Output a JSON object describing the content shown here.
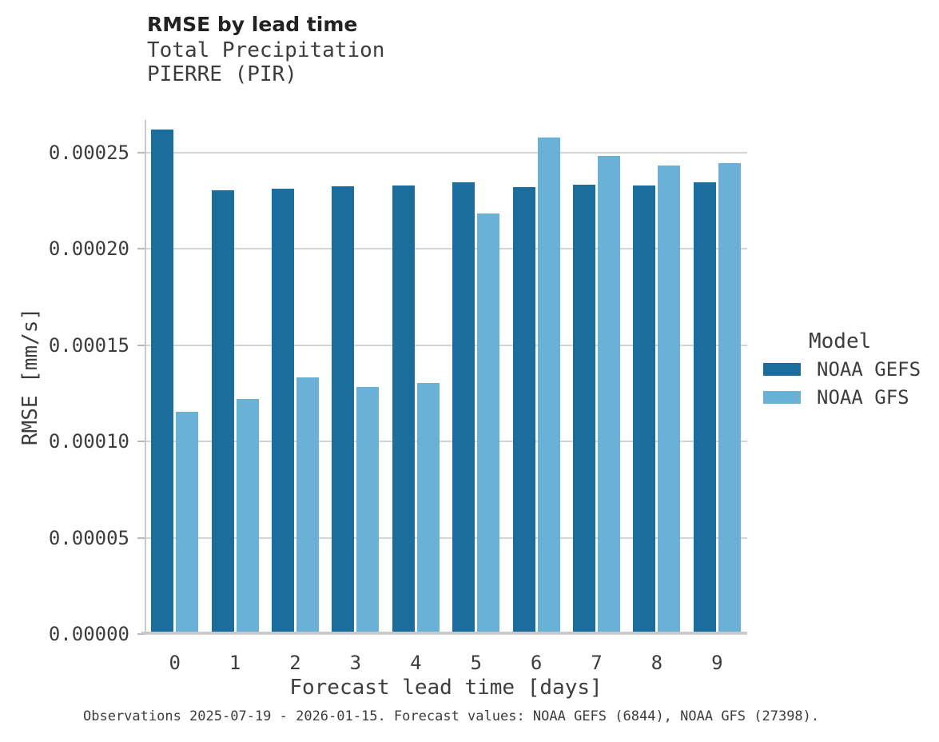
{
  "chart_data": {
    "type": "bar",
    "title": "RMSE by lead time",
    "subtitle": "Total Precipitation",
    "location": "PIERRE (PIR)",
    "xlabel": "Forecast lead time [days]",
    "ylabel": "RMSE [mm/s]",
    "caption": "Observations 2025-07-19 - 2026-01-15. Forecast values: NOAA GEFS (6844), NOAA GFS (27398).",
    "legend_title": "Model",
    "legend_position": "right",
    "grid": "horizontal",
    "background_color": "#ffffff",
    "categories": [
      "0",
      "1",
      "2",
      "3",
      "4",
      "5",
      "6",
      "7",
      "8",
      "9"
    ],
    "series": [
      {
        "name": "NOAA GEFS",
        "color": "#1b6d9e",
        "values": [
          0.000262,
          0.0002305,
          0.0002315,
          0.0002325,
          0.000233,
          0.0002345,
          0.000232,
          0.0002335,
          0.000233,
          0.0002345
        ]
      },
      {
        "name": "NOAA GFS",
        "color": "#6ab1d8",
        "values": [
          0.0001155,
          0.000122,
          0.0001335,
          0.0001285,
          0.0001305,
          0.0002185,
          0.000258,
          0.0002485,
          0.0002435,
          0.0002445
        ]
      }
    ],
    "ylim": [
      0,
      0.000267
    ],
    "yticks": [
      {
        "value": 0.0,
        "label": "0.00000"
      },
      {
        "value": 5e-05,
        "label": "0.00005"
      },
      {
        "value": 0.0001,
        "label": "0.00010"
      },
      {
        "value": 0.00015,
        "label": "0.00015"
      },
      {
        "value": 0.0002,
        "label": "0.00020"
      },
      {
        "value": 0.00025,
        "label": "0.00025"
      }
    ]
  }
}
